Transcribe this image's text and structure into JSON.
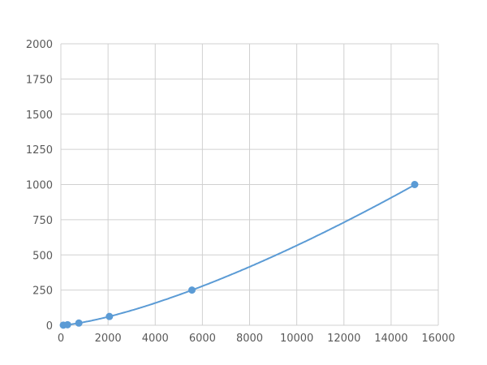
{
  "chart_data": {
    "type": "scatter",
    "title": "",
    "xlabel": "",
    "ylabel": "",
    "xlim": [
      0,
      16000
    ],
    "ylim": [
      0,
      2000
    ],
    "xticks": [
      0,
      2000,
      4000,
      6000,
      8000,
      10000,
      12000,
      14000,
      16000
    ],
    "yticks": [
      0,
      250,
      500,
      750,
      1000,
      1250,
      1500,
      1750,
      2000
    ],
    "grid": true,
    "color": "#5b9bd5",
    "trendline": "smooth curve",
    "series": [
      {
        "x": [
          104,
          282,
          762,
          2058,
          5556,
          15000
        ],
        "y": [
          0.98,
          3.9,
          15.6,
          62.5,
          250,
          1000
        ]
      }
    ]
  }
}
